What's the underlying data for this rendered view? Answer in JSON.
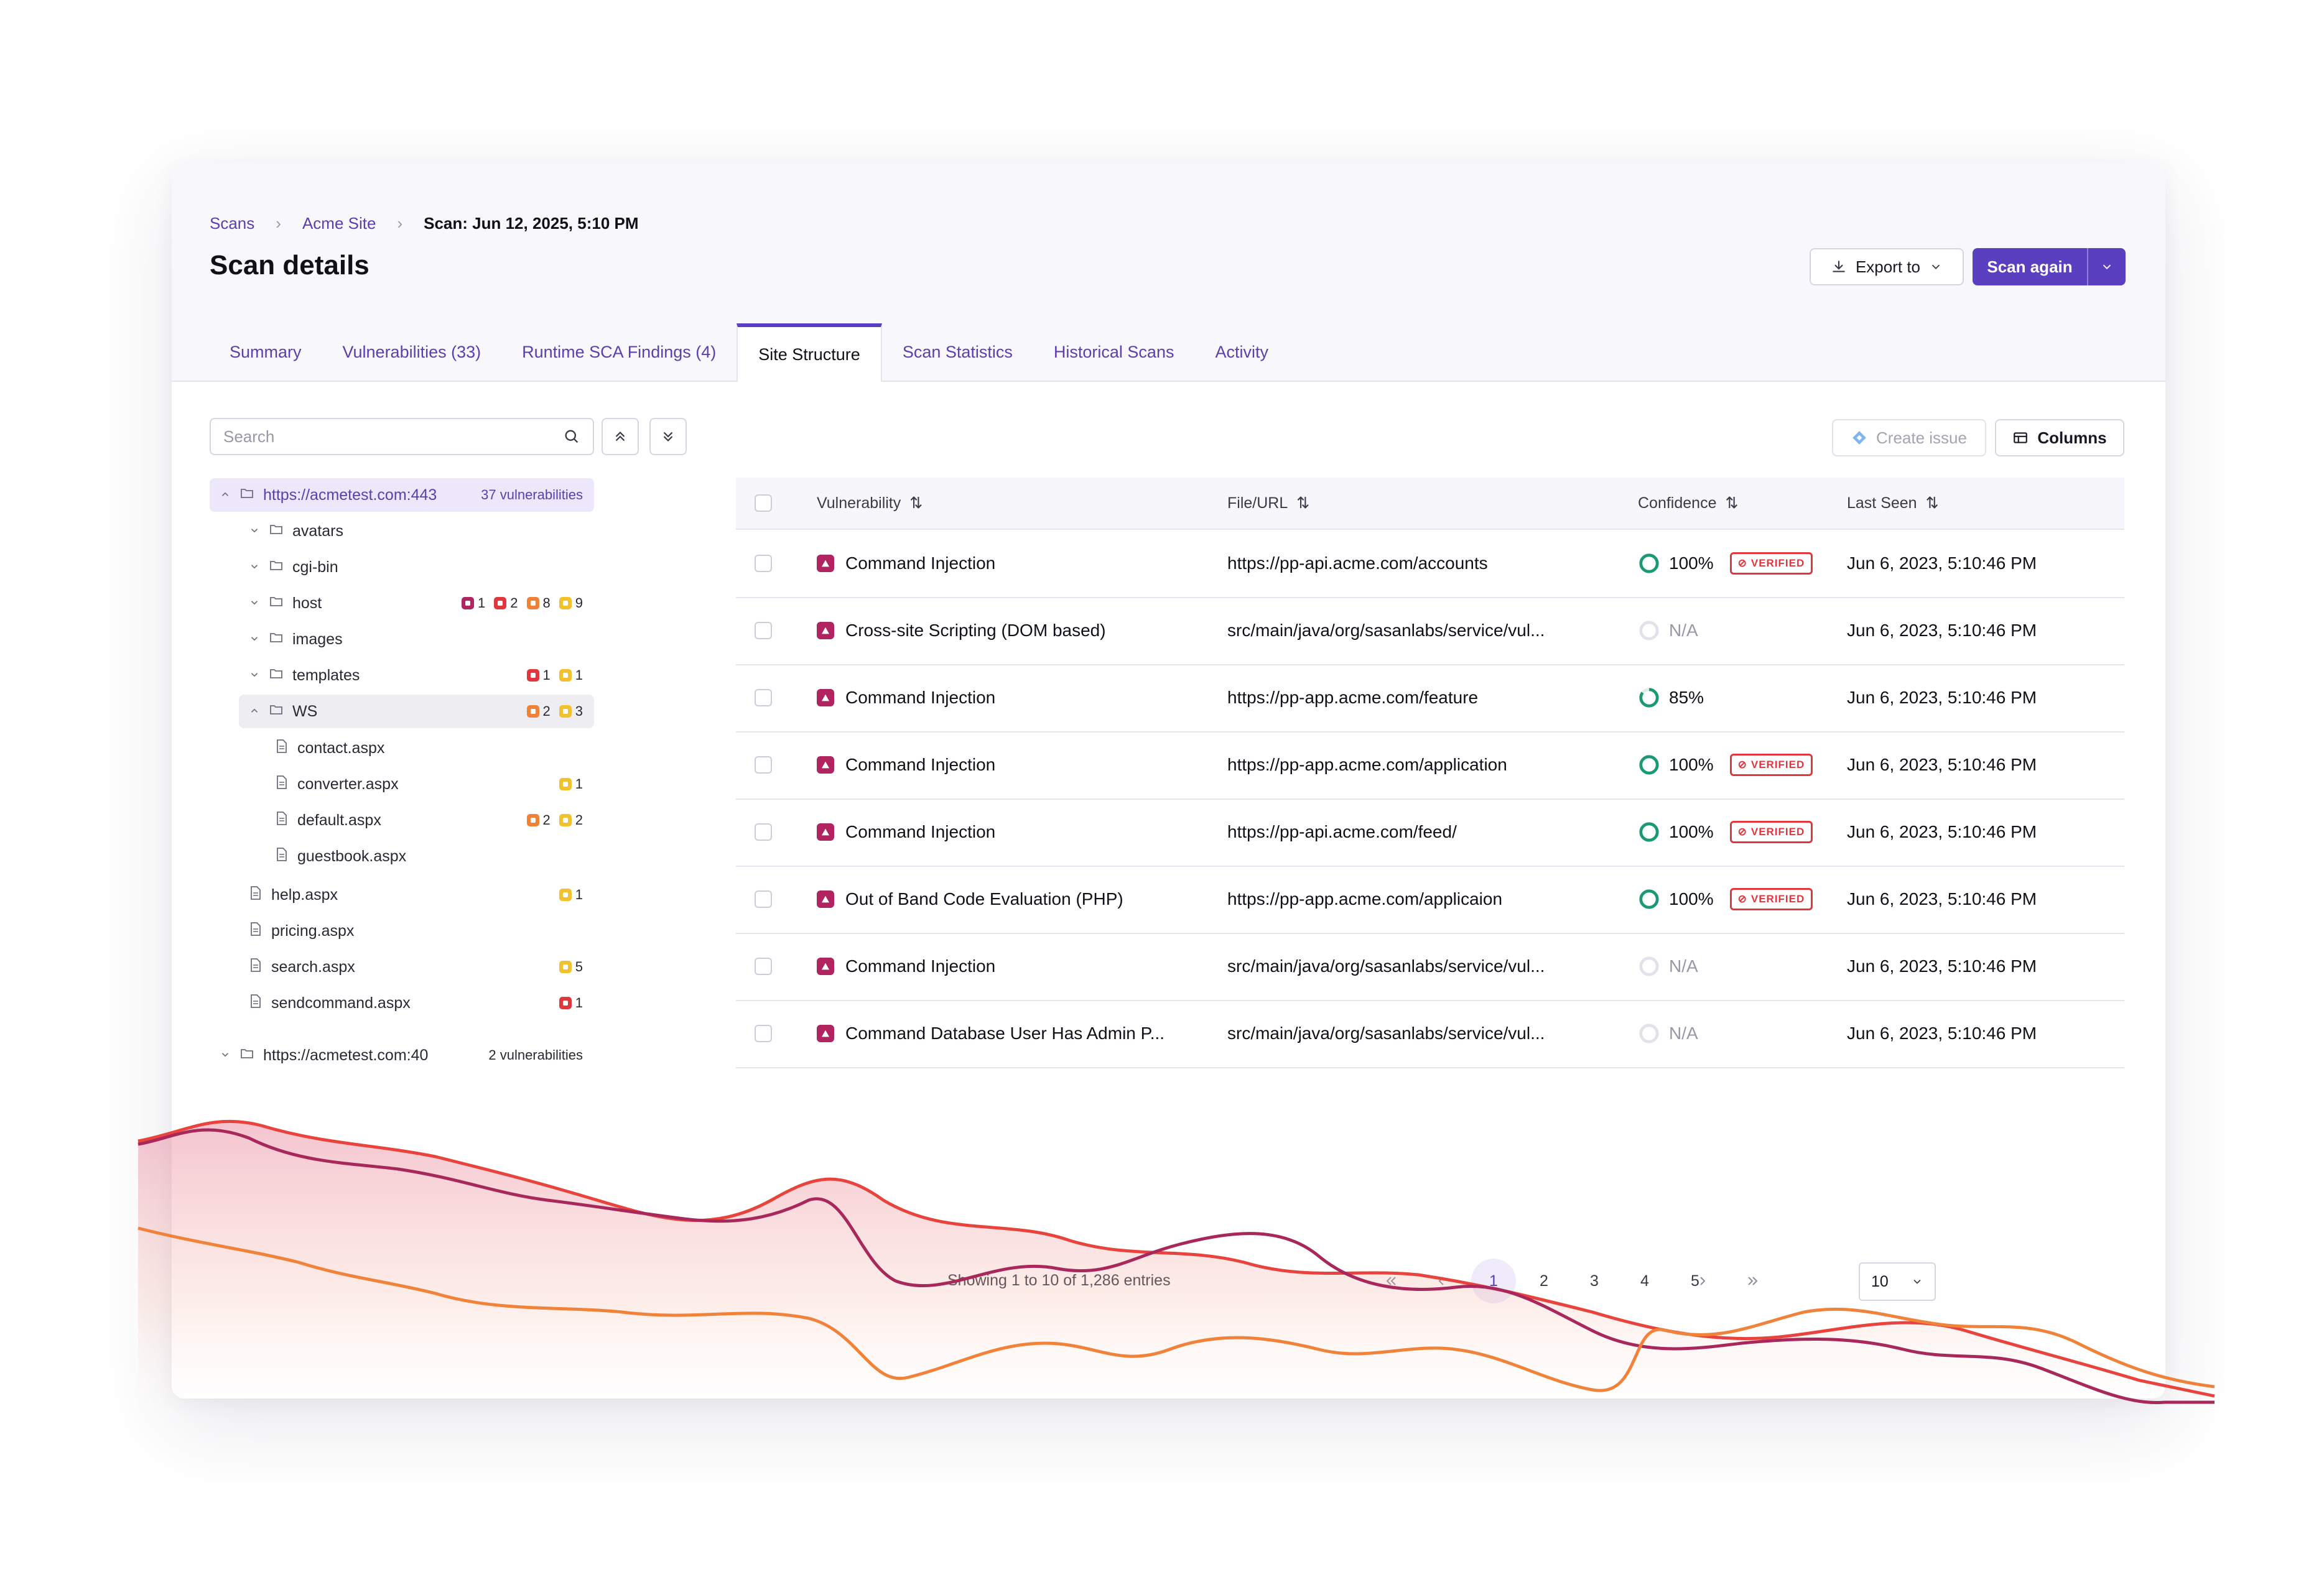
{
  "breadcrumb": [
    "Scans",
    "Acme Site",
    "Scan: Jun 12, 2025, 5:10 PM"
  ],
  "page_title": "Scan details",
  "actions": {
    "export": "Export to",
    "scan_again": "Scan again",
    "create_issue": "Create issue",
    "columns": "Columns"
  },
  "tabs": [
    "Summary",
    "Vulnerabilities (33)",
    "Runtime SCA Findings (4)",
    "Site Structure",
    "Scan Statistics",
    "Historical Scans",
    "Activity"
  ],
  "active_tab": "Site Structure",
  "search": {
    "placeholder": "Search"
  },
  "tree": {
    "root1": {
      "label": "https://acmetest.com:443",
      "count": "37 vulnerabilities"
    },
    "folders": [
      {
        "label": "avatars"
      },
      {
        "label": "cgi-bin"
      },
      {
        "label": "host",
        "sev": [
          [
            "crit",
            "1"
          ],
          [
            "high",
            "2"
          ],
          [
            "med",
            "8"
          ],
          [
            "low",
            "9"
          ]
        ]
      },
      {
        "label": "images"
      },
      {
        "label": "templates",
        "sev": [
          [
            "high",
            "1"
          ],
          [
            "low",
            "1"
          ]
        ]
      },
      {
        "label": "WS",
        "sev": [
          [
            "med",
            "2"
          ],
          [
            "low",
            "3"
          ]
        ]
      }
    ],
    "ws_files": [
      {
        "label": "contact.aspx"
      },
      {
        "label": "converter.aspx",
        "sev": [
          [
            "low",
            "1"
          ]
        ]
      },
      {
        "label": "default.aspx",
        "sev": [
          [
            "med",
            "2"
          ],
          [
            "low",
            "2"
          ]
        ]
      },
      {
        "label": "guestbook.aspx"
      }
    ],
    "files": [
      {
        "label": "help.aspx",
        "sev": [
          [
            "low",
            "1"
          ]
        ]
      },
      {
        "label": "pricing.aspx"
      },
      {
        "label": "search.aspx",
        "sev": [
          [
            "low",
            "5"
          ]
        ]
      },
      {
        "label": "sendcommand.aspx",
        "sev": [
          [
            "high",
            "1"
          ]
        ]
      }
    ],
    "root2": {
      "label": "https://acmetest.com:40",
      "count": "2 vulnerabilities"
    }
  },
  "table": {
    "headers": [
      "Vulnerability",
      "File/URL",
      "Confidence",
      "Last Seen"
    ],
    "rows": [
      {
        "vuln": "Command Injection",
        "url": "https://pp-api.acme.com/accounts",
        "conf": "100%",
        "pct": 100,
        "verified": true,
        "seen": "Jun 6, 2023, 5:10:46 PM"
      },
      {
        "vuln": "Cross-site Scripting (DOM based)",
        "url": "src/main/java/org/sasanlabs/service/vul...",
        "conf": "N/A",
        "pct": 0,
        "verified": false,
        "seen": "Jun 6, 2023, 5:10:46 PM"
      },
      {
        "vuln": "Command Injection",
        "url": "https://pp-app.acme.com/feature",
        "conf": "85%",
        "pct": 85,
        "verified": false,
        "seen": "Jun 6, 2023, 5:10:46 PM"
      },
      {
        "vuln": "Command Injection",
        "url": "https://pp-app.acme.com/application",
        "conf": "100%",
        "pct": 100,
        "verified": true,
        "seen": "Jun 6, 2023, 5:10:46 PM"
      },
      {
        "vuln": "Command Injection",
        "url": "https://pp-api.acme.com/feed/",
        "conf": "100%",
        "pct": 100,
        "verified": true,
        "seen": "Jun 6, 2023, 5:10:46 PM"
      },
      {
        "vuln": "Out of Band Code Evaluation (PHP)",
        "url": "https://pp-app.acme.com/applicaion",
        "conf": "100%",
        "pct": 100,
        "verified": true,
        "seen": "Jun 6, 2023, 5:10:46 PM"
      },
      {
        "vuln": "Command Injection",
        "url": "src/main/java/org/sasanlabs/service/vul...",
        "conf": "N/A",
        "pct": 0,
        "verified": false,
        "seen": "Jun 6, 2023, 5:10:46 PM"
      },
      {
        "vuln": "Command Database User Has Admin P...",
        "url": "src/main/java/org/sasanlabs/service/vul...",
        "conf": "N/A",
        "pct": 0,
        "verified": false,
        "seen": "Jun 6, 2023, 5:10:46 PM"
      }
    ],
    "verified_label": "VERIFIED"
  },
  "pagination": {
    "summary": "Showing 1 to 10 of 1,286 entries",
    "pages": [
      "1",
      "2",
      "3",
      "4",
      "5"
    ],
    "current": "1",
    "page_size": "10"
  },
  "colors": {
    "accent": "#5a3fc0",
    "critical": "#b0245f",
    "high": "#e0363e",
    "medium": "#f08238",
    "low": "#f2c12e",
    "confidence": "#1a9a74"
  },
  "icons": [
    "chevron-right-icon",
    "download-icon",
    "chevron-down-icon",
    "search-icon",
    "collapse-all-icon",
    "expand-all-icon",
    "folder-icon",
    "file-icon",
    "jira-icon",
    "columns-icon",
    "sort-icon",
    "severity-icon",
    "verified-icon",
    "first-page-icon",
    "prev-page-icon",
    "next-page-icon",
    "last-page-icon"
  ]
}
